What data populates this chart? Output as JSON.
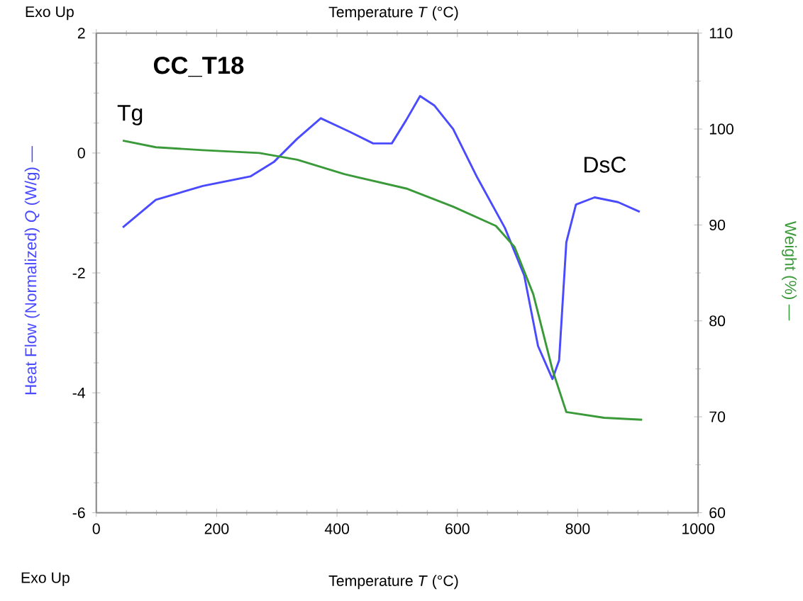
{
  "chart_data": {
    "type": "line",
    "title": "CC_T18",
    "xlabel": "Temperature *T* (°C)",
    "ylabel": "Heat Flow (Normalized) *Q* (W/g) —",
    "y2label": "Weight (%) —",
    "xlim": [
      0,
      1000
    ],
    "xticks": [
      0,
      200,
      400,
      600,
      800,
      1000
    ],
    "ylim": [
      -6,
      2
    ],
    "yticks": [
      -6,
      -4,
      -2,
      0,
      2
    ],
    "y2lim": [
      60,
      110
    ],
    "y2ticks": [
      60,
      70,
      80,
      90,
      100,
      110
    ],
    "series": [
      {
        "color": "#4a4aff",
        "axis": "y",
        "x": [
          44,
          99,
          177,
          256,
          295,
          334,
          373,
          420,
          460,
          491,
          515,
          538,
          562,
          593,
          632,
          679,
          711,
          734,
          758,
          769,
          781,
          797,
          828,
          867,
          903
        ],
        "values": [
          -1.24,
          -0.78,
          -0.55,
          -0.39,
          -0.15,
          0.24,
          0.58,
          0.36,
          0.16,
          0.16,
          0.55,
          0.95,
          0.79,
          0.4,
          -0.39,
          -1.25,
          -2.04,
          -3.22,
          -3.77,
          -3.46,
          -1.49,
          -0.86,
          -0.74,
          -0.82,
          -0.98
        ]
      },
      {
        "color": "#3a9a3a",
        "axis": "y2",
        "x": [
          44,
          99,
          177,
          271,
          334,
          412,
          515,
          593,
          664,
          695,
          726,
          758,
          781,
          844,
          907
        ],
        "values": [
          98.8,
          98.1,
          97.8,
          97.5,
          96.8,
          95.3,
          93.8,
          91.9,
          89.9,
          87.7,
          82.8,
          74.9,
          70.5,
          69.9,
          69.7
        ]
      }
    ],
    "annotations": [
      "Exo Up",
      "Tg",
      "DsC",
      "Exo Up",
      "Temperature *T* (°C)"
    ]
  }
}
